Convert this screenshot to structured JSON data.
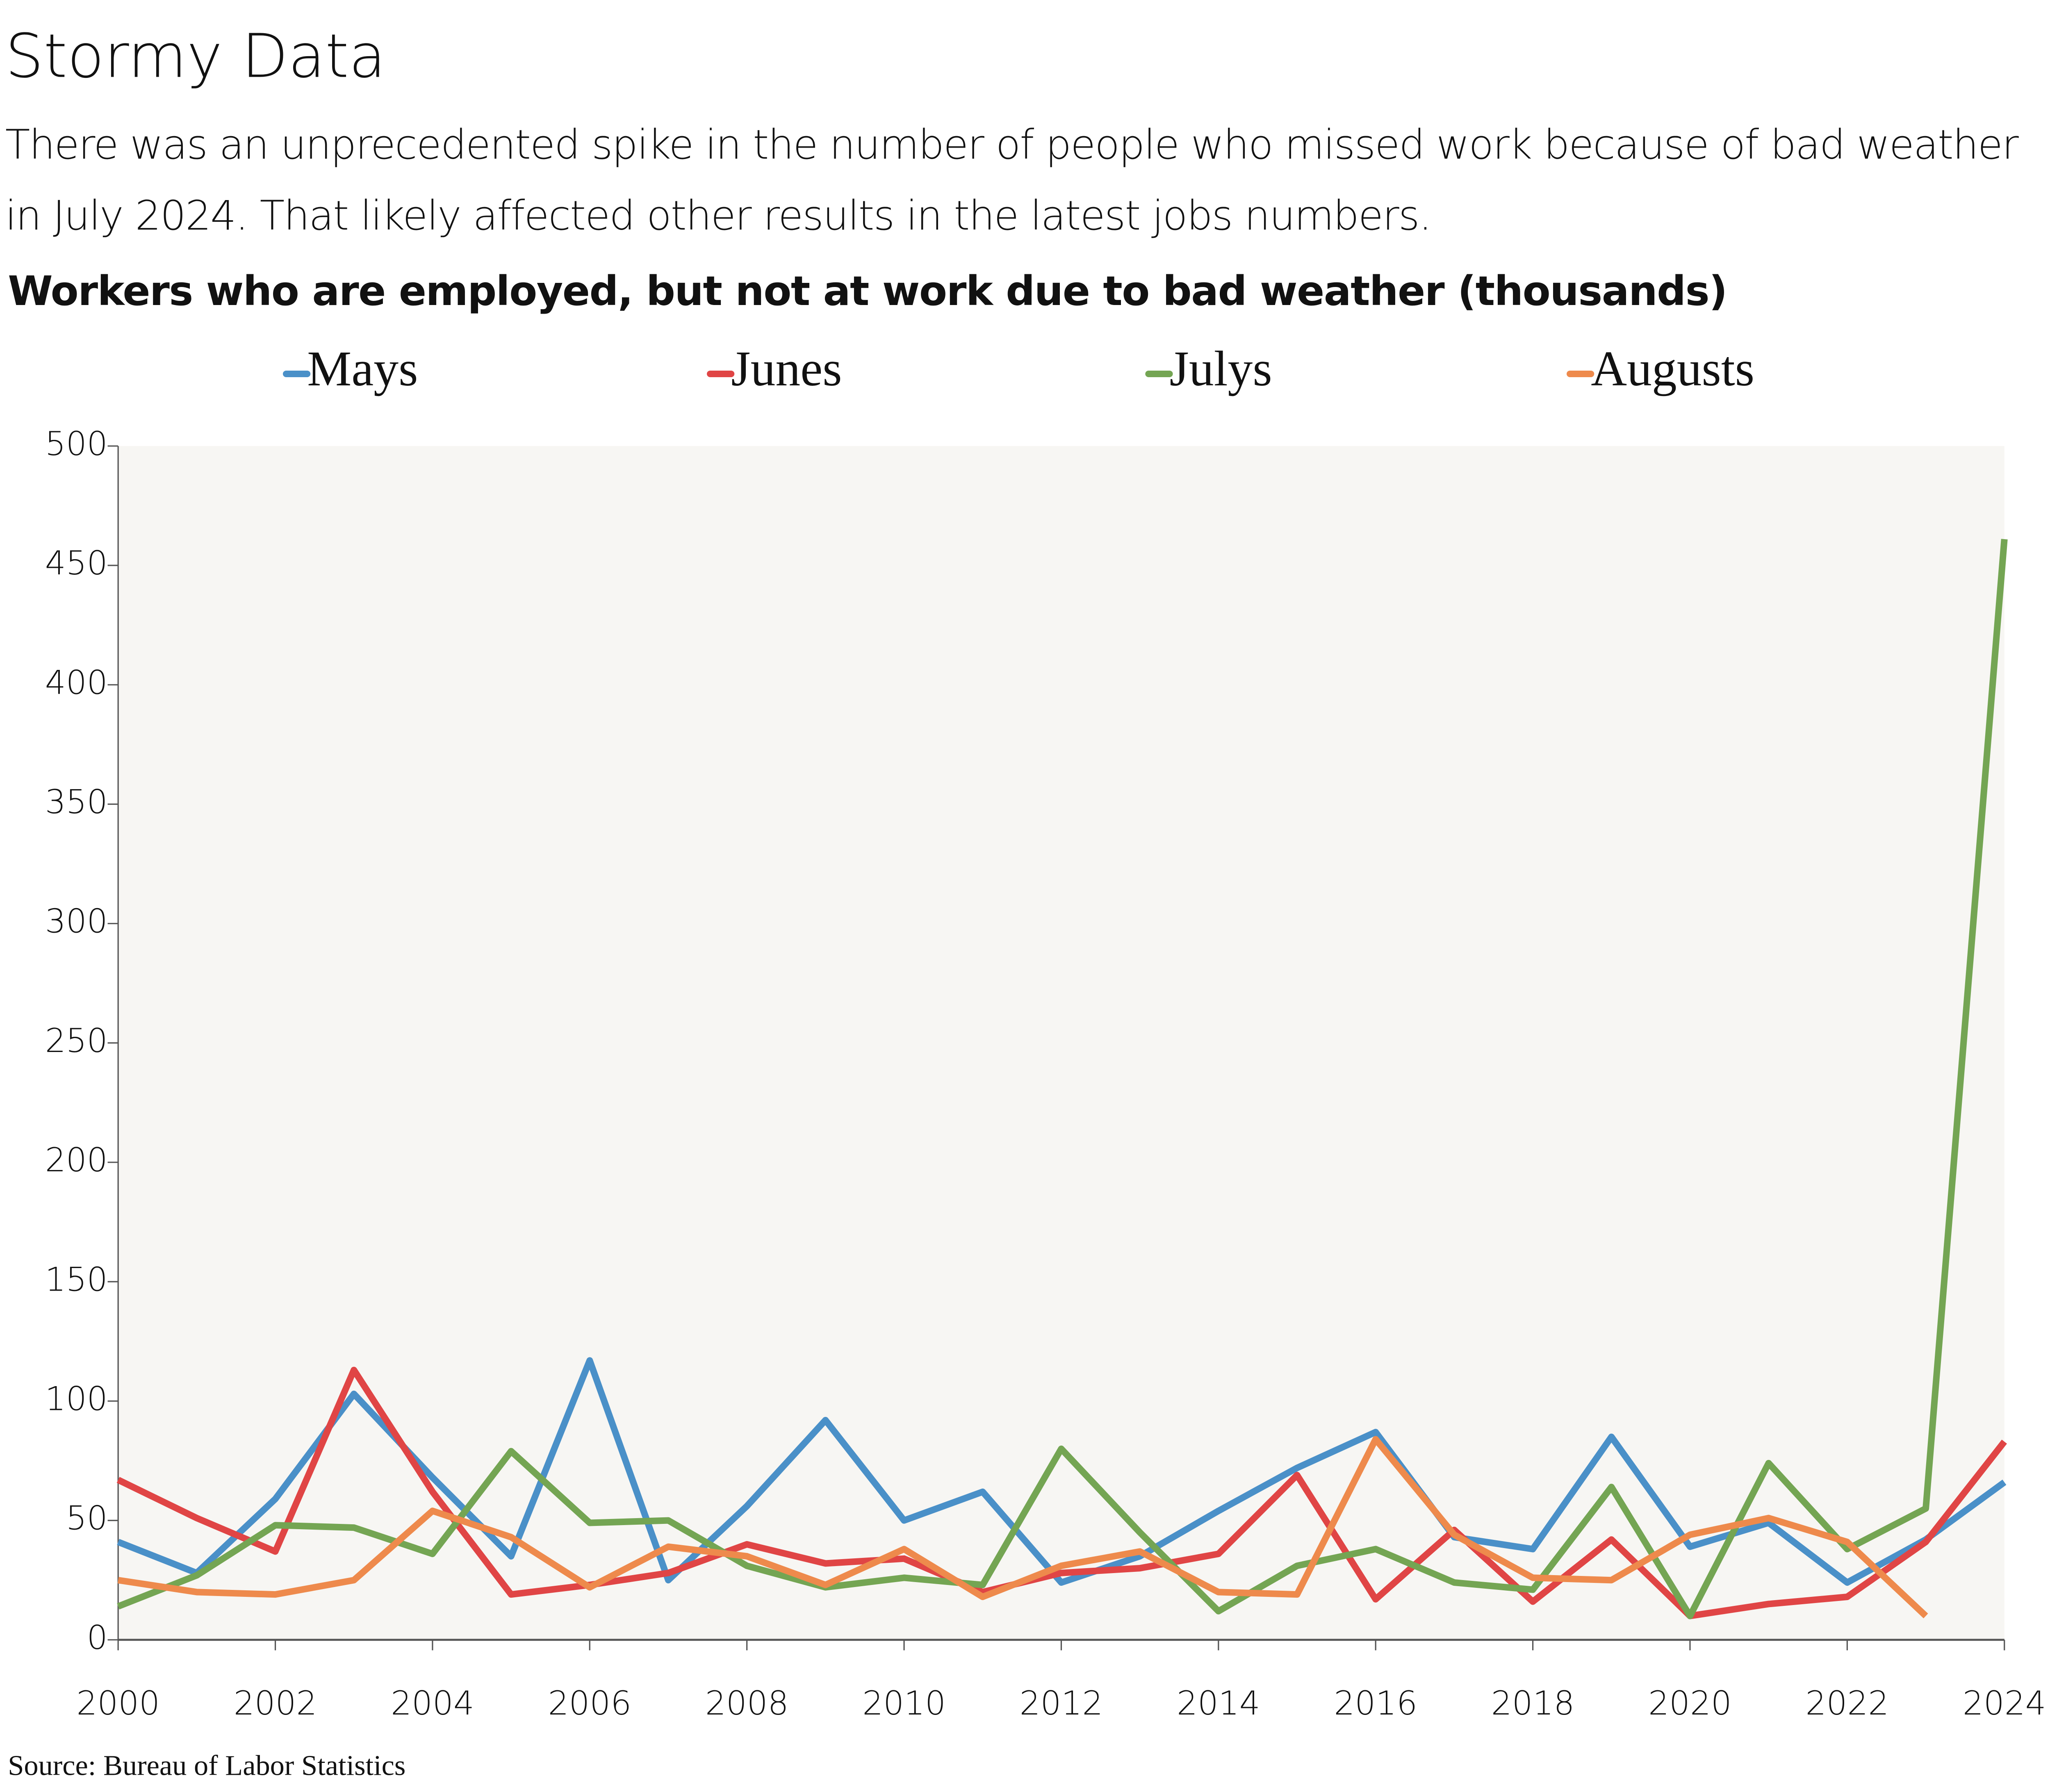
{
  "chart_data": {
    "type": "line",
    "title": "Stormy Data",
    "subtitle": "There was an unprecedented spike in the number of people who missed work because of bad weather in July 2024. That likely affected other results in the latest jobs numbers.",
    "chart_title": "Workers who are employed, but not at work due to bad weather (thousands)",
    "source": "Source: Bureau of Labor Statistics",
    "x": [
      2000,
      2001,
      2002,
      2003,
      2004,
      2005,
      2006,
      2007,
      2008,
      2009,
      2010,
      2011,
      2012,
      2013,
      2014,
      2015,
      2016,
      2017,
      2018,
      2019,
      2020,
      2021,
      2022,
      2023,
      2024
    ],
    "series": [
      {
        "name": "Mays",
        "color": "#4a90c8",
        "values": [
          41,
          28,
          59,
          103,
          68,
          35,
          117,
          25,
          56,
          92,
          50,
          62,
          24,
          35,
          54,
          72,
          87,
          43,
          38,
          85,
          39,
          49,
          24,
          42,
          66
        ]
      },
      {
        "name": "Junes",
        "color": "#e04545",
        "values": [
          67,
          51,
          37,
          113,
          62,
          19,
          23,
          28,
          40,
          32,
          34,
          20,
          28,
          30,
          36,
          69,
          17,
          46,
          16,
          42,
          10,
          15,
          18,
          41,
          83
        ]
      },
      {
        "name": "Julys",
        "color": "#74a553",
        "values": [
          14,
          27,
          48,
          47,
          36,
          79,
          49,
          50,
          31,
          22,
          26,
          23,
          80,
          45,
          12,
          31,
          38,
          24,
          21,
          64,
          10,
          74,
          38,
          55,
          461
        ]
      },
      {
        "name": "Augusts",
        "color": "#ee8a4c",
        "values": [
          25,
          20,
          19,
          25,
          54,
          43,
          22,
          39,
          35,
          23,
          38,
          18,
          31,
          37,
          20,
          19,
          84,
          44,
          26,
          25,
          44,
          51,
          41,
          10,
          null
        ]
      }
    ],
    "xlim": [
      2000,
      2024
    ],
    "xticks": [
      2000,
      2002,
      2004,
      2006,
      2008,
      2010,
      2012,
      2014,
      2016,
      2018,
      2020,
      2022,
      2024
    ],
    "ylim": [
      0,
      500
    ],
    "yticks": [
      0,
      50,
      100,
      150,
      200,
      250,
      300,
      350,
      400,
      450,
      500
    ],
    "legend": "top",
    "grid": false
  }
}
